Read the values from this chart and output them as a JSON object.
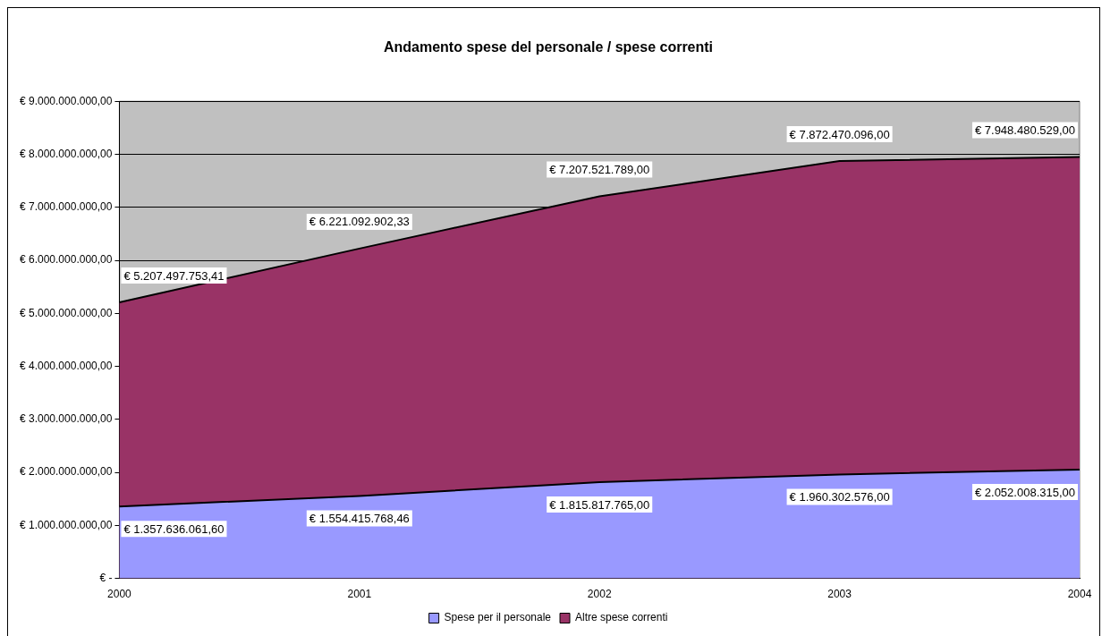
{
  "chart_data": {
    "type": "area",
    "title": "Andamento spese del personale / spese correnti",
    "categories": [
      "2000",
      "2001",
      "2002",
      "2003",
      "2004"
    ],
    "series": [
      {
        "name": "Spese per il personale",
        "color": "#9999ff",
        "values": [
          1357636061.6,
          1554415768.46,
          1815817765.0,
          1960302576.0,
          2052008315.0
        ],
        "value_labels": [
          "€ 1.357.636.061,60",
          "€ 1.554.415.768,46",
          "€ 1.815.817.765,00",
          "€ 1.960.302.576,00",
          "€ 2.052.008.315,00"
        ]
      },
      {
        "name": "Altre spese correnti",
        "color": "#993366",
        "values": [
          5207497753.41,
          6221092902.33,
          7207521789.0,
          7872470096.0,
          7948480529.0
        ],
        "value_labels": [
          "€ 5.207.497.753,41",
          "€ 6.221.092.902,33",
          "€ 7.207.521.789,00",
          "€ 7.872.470.096,00",
          "€ 7.948.480.529,00"
        ]
      }
    ],
    "ylim": [
      0,
      9000000000
    ],
    "yticks": [
      {
        "value": 0,
        "label": "€ -"
      },
      {
        "value": 1000000000,
        "label": "€ 1.000.000.000,00"
      },
      {
        "value": 2000000000,
        "label": "€ 2.000.000.000,00"
      },
      {
        "value": 3000000000,
        "label": "€ 3.000.000.000,00"
      },
      {
        "value": 4000000000,
        "label": "€ 4.000.000.000,00"
      },
      {
        "value": 5000000000,
        "label": "€ 5.000.000.000,00"
      },
      {
        "value": 6000000000,
        "label": "€ 6.000.000.000,00"
      },
      {
        "value": 7000000000,
        "label": "€ 7.000.000.000,00"
      },
      {
        "value": 8000000000,
        "label": "€ 8.000.000.000,00"
      },
      {
        "value": 9000000000,
        "label": "€ 9.000.000.000,00"
      }
    ],
    "grid": "y",
    "legend": "bottom"
  }
}
